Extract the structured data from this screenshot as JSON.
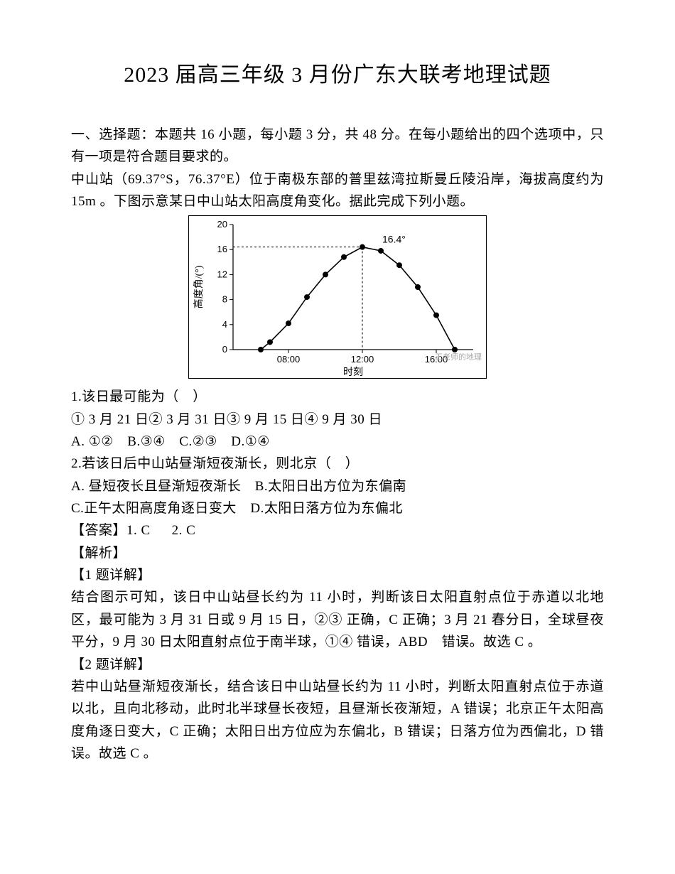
{
  "title": "2023 届高三年级 3 月份广东大联考地理试题",
  "section_intro": "一、选择题：本题共 16 小题，每小题 3 分，共 48 分。在每小题给出的四个选项中，只有一项是符合题目要求的。",
  "context": "中山站（69.37°S，76.37°E）位于南极东部的普里兹湾拉斯曼丘陵沿岸，海拔高度约为 15m 。下图示意某日中山站太阳高度角变化。据此完成下列小题。",
  "chart": {
    "type": "line",
    "title_label": "16.4°",
    "y_label": "高度角/(°)",
    "x_label": "时刻",
    "x_ticks": [
      "08:00",
      "12:00",
      "16:00"
    ],
    "x_tick_positions": [
      8,
      12,
      16
    ],
    "y_ticks": [
      0,
      4,
      8,
      12,
      16,
      20
    ],
    "ylim": [
      0,
      20
    ],
    "xlim": [
      5,
      18
    ],
    "data_x": [
      6.5,
      7,
      8,
      9,
      10,
      11,
      12,
      13,
      14,
      15,
      16,
      17
    ],
    "data_y": [
      0,
      1.2,
      4.2,
      8.4,
      12,
      14.8,
      16.4,
      15.8,
      13.5,
      10,
      5.5,
      0
    ],
    "peak_x": 12,
    "peak_y": 16.4,
    "line_color": "#000000",
    "marker_fill": "#000000",
    "marker_size": 4,
    "axis_color": "#000000",
    "background": "#ffffff",
    "tick_fontsize": 13,
    "label_fontsize": 14,
    "watermark": "王老师的地理"
  },
  "q1": {
    "stem": "1.该日最可能为（　）",
    "options_line": "① 3 月 21 日② 3 月 31 日③ 9 月 15 日④ 9 月 30 日",
    "choices": "A. ①②　B.③④　C.②③　D.①④"
  },
  "q2": {
    "stem": "2.若该日后中山站昼渐短夜渐长，则北京（　）",
    "line1": "A. 昼短夜长且昼渐短夜渐长 B.太阳日出方位为东偏南",
    "line2": "C.正午太阳高度角逐日变大 D.太阳日落方位为东偏北"
  },
  "answer_line": "【答案】1. C 　 2. C",
  "analysis_label": "【解析】",
  "a1_title": "【1 题详解】",
  "a1_body": "结合图示可知，该日中山站昼长约为 11 小时，判断该日太阳直射点位于赤道以北地区，最可能为 3 月 31 日或 9 月 15 日，②③ 正确，C 正确；3 月 21 春分日，全球昼夜平分，9 月 30 日太阳直射点位于南半球，①④ 错误，ABD　错误。故选 C 。",
  "a2_title": "【2 题详解】",
  "a2_body": "若中山站昼渐短夜渐长，结合该日中山站昼长约为 11 小时，判断太阳直射点位于赤道以北，且向北移动，此时北半球昼长夜短，且昼渐长夜渐短，A 错误；北京正午太阳高度角逐日变大，C 正确；太阳日出方位应为东偏北，B 错误；日落方位为西偏北，D 错误。故选 C 。"
}
